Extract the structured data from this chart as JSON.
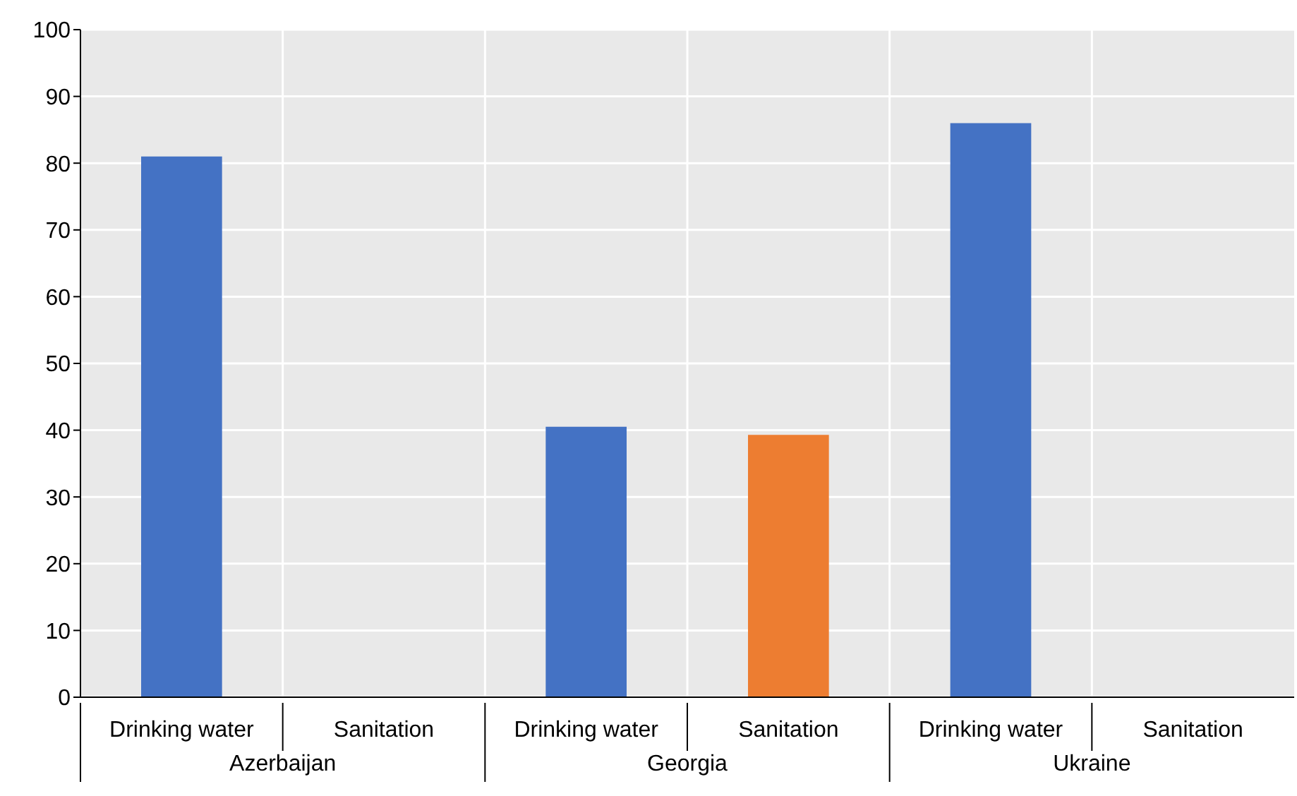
{
  "chart_data": {
    "type": "bar",
    "categories": [
      "Azerbaijan",
      "Georgia",
      "Ukraine"
    ],
    "series": [
      {
        "name": "Drinking water",
        "color": "#4472c4",
        "values": [
          81,
          40.5,
          86
        ]
      },
      {
        "name": "Sanitation",
        "color": "#ed7d31",
        "values": [
          null,
          39.3,
          null
        ]
      }
    ],
    "ylim": [
      0,
      100
    ],
    "yticks": [
      0,
      10,
      20,
      30,
      40,
      50,
      60,
      70,
      80,
      90,
      100
    ],
    "grid": true,
    "legend": false
  }
}
